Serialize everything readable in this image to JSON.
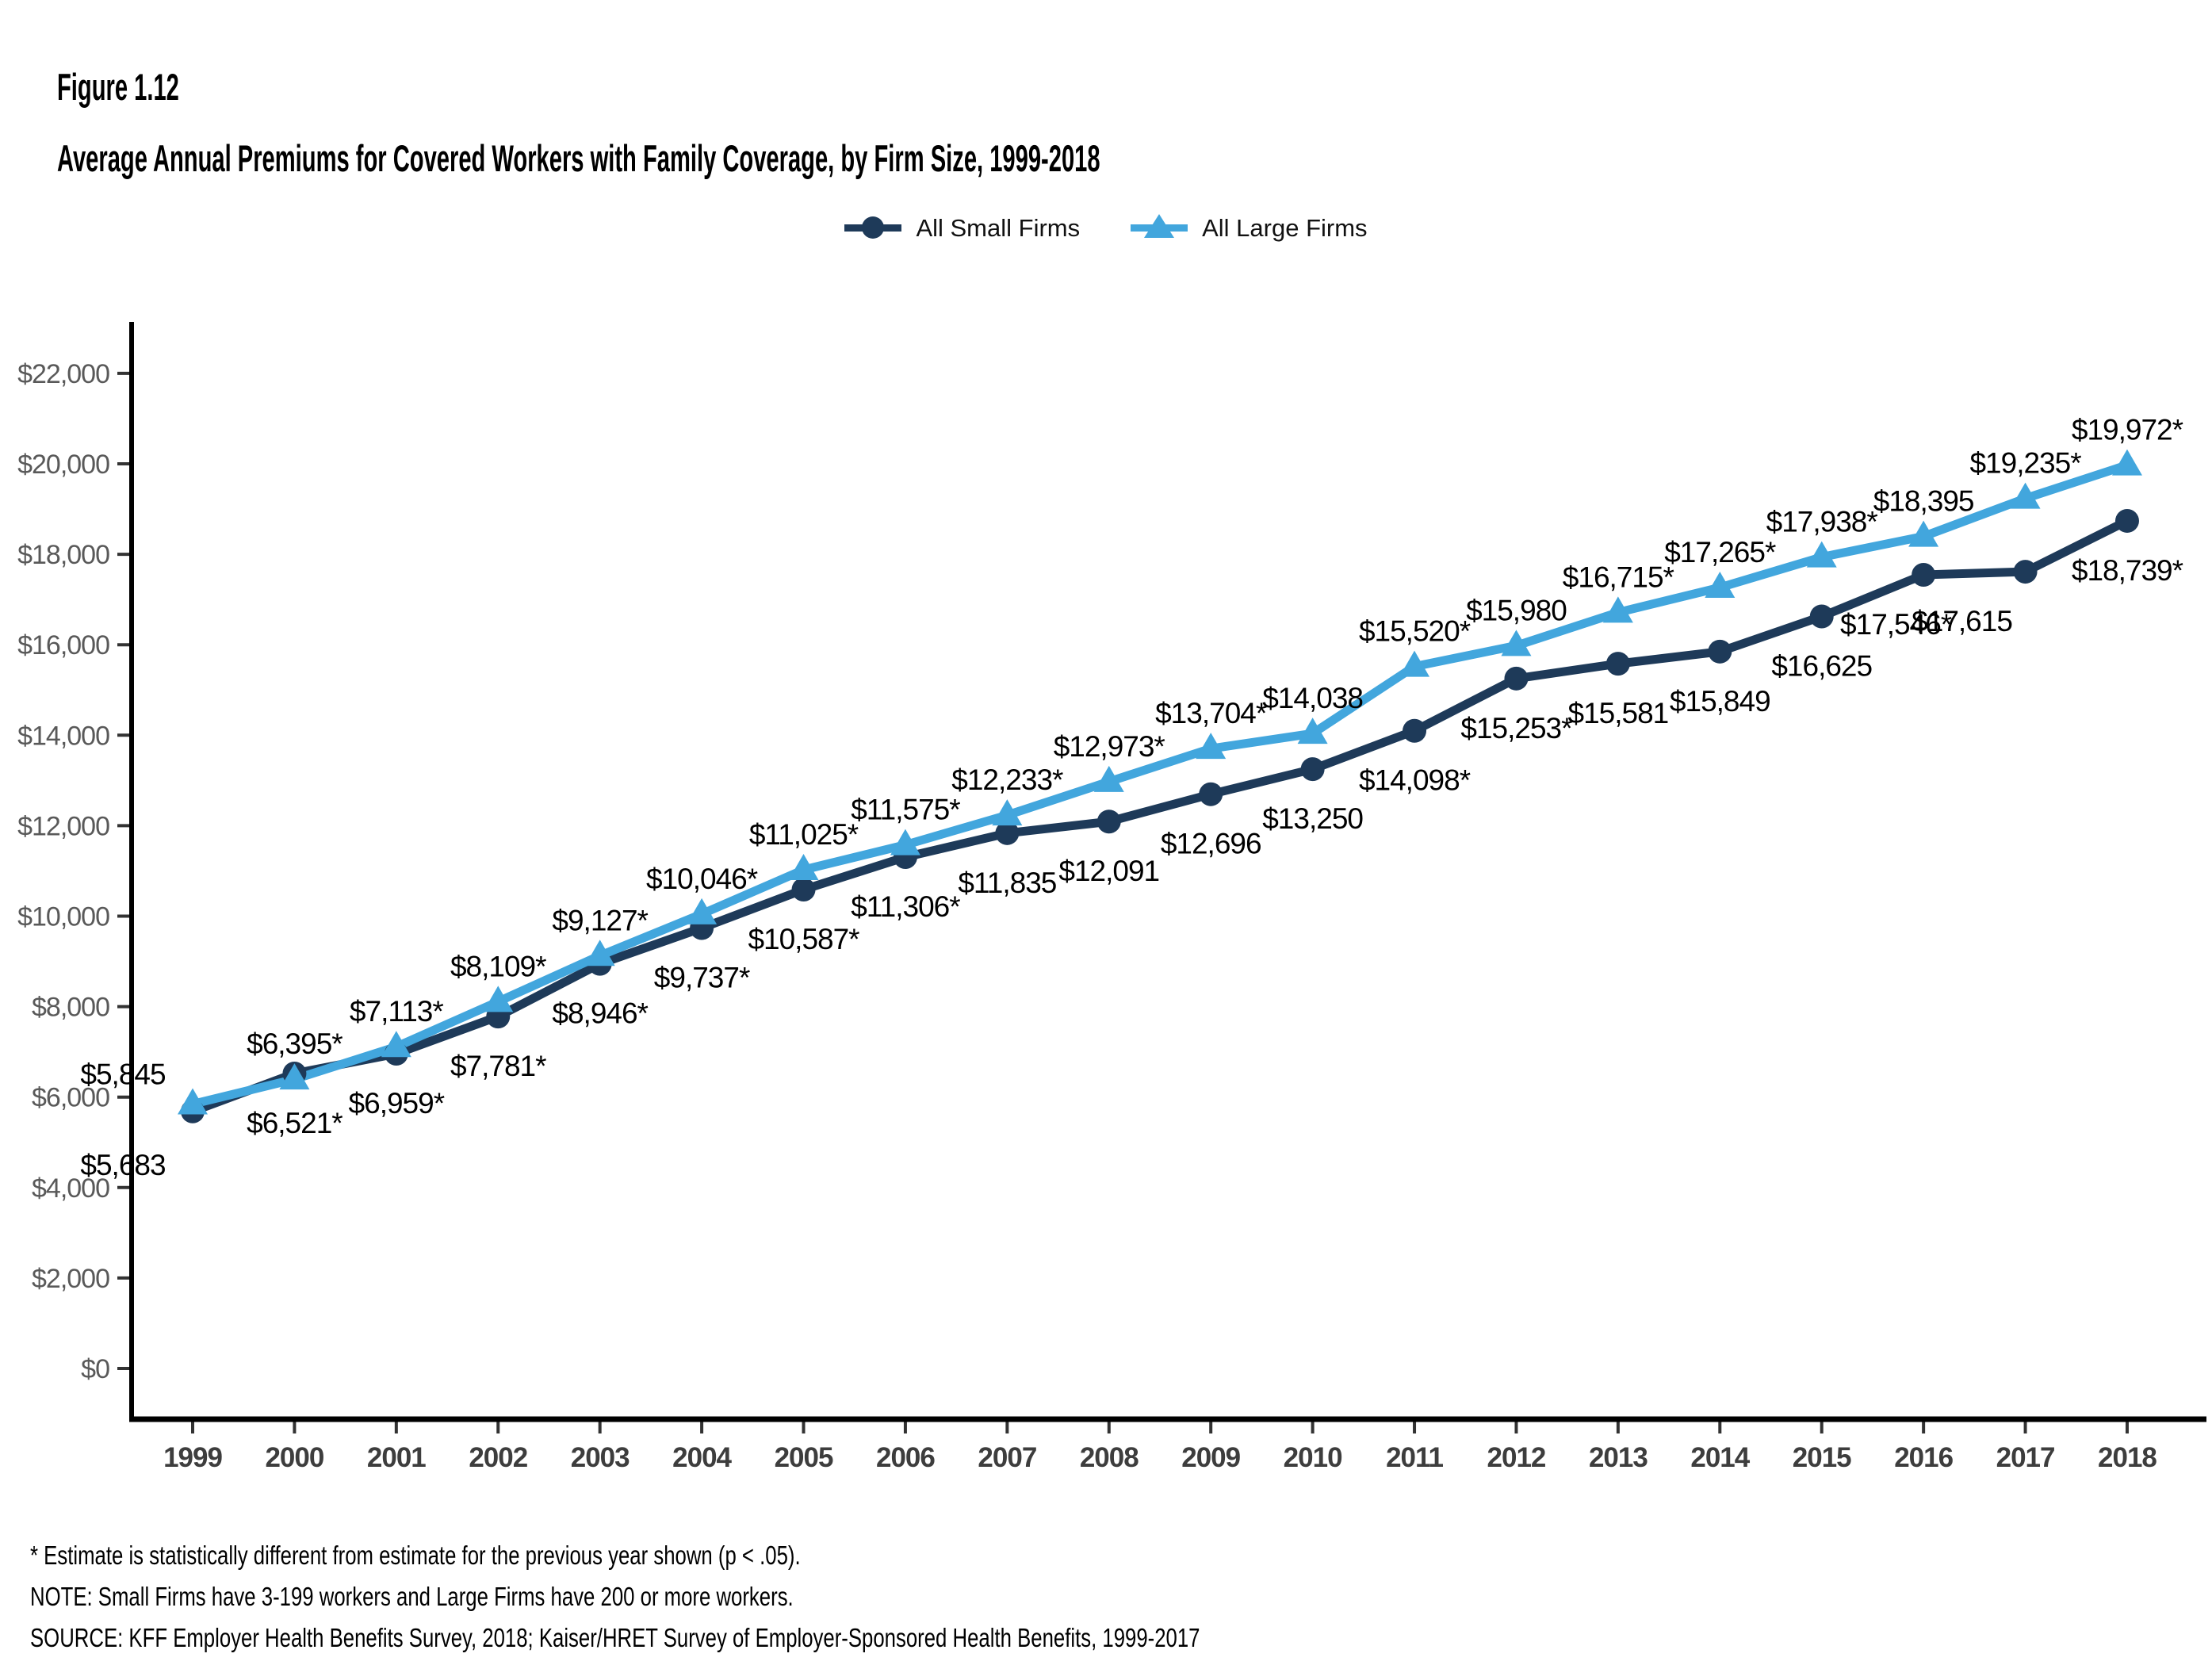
{
  "figure": {
    "label": "Figure 1.12",
    "title": "Average Annual Premiums for Covered Workers with Family Coverage, by Firm Size, 1999-2018"
  },
  "legend": {
    "items": [
      {
        "label": "All Small Firms",
        "marker": "circle",
        "color": "#1e3a59"
      },
      {
        "label": "All Large Firms",
        "marker": "triangle",
        "color": "#42a6dd"
      }
    ]
  },
  "chart_data": {
    "type": "line",
    "x": [
      1999,
      2000,
      2001,
      2002,
      2003,
      2004,
      2005,
      2006,
      2007,
      2008,
      2009,
      2010,
      2011,
      2012,
      2013,
      2014,
      2015,
      2016,
      2017,
      2018
    ],
    "series": [
      {
        "name": "All Small Firms",
        "marker": "circle",
        "color": "#1e3a59",
        "values": [
          5683,
          6521,
          6959,
          7781,
          8946,
          9737,
          10587,
          11306,
          11835,
          12091,
          12696,
          13250,
          14098,
          15253,
          15581,
          15849,
          16625,
          17546,
          17615,
          18739
        ],
        "labels": [
          "$5,683",
          "$6,521*",
          "$6,959*",
          "$7,781*",
          "$8,946*",
          "$9,737*",
          "$10,587*",
          "$11,306*",
          "$11,835",
          "$12,091",
          "$12,696",
          "$13,250",
          "$14,098*",
          "$15,253*",
          "$15,581",
          "$15,849",
          "$16,625",
          "$17,546*",
          "$17,615",
          "$18,739*"
        ]
      },
      {
        "name": "All Large Firms",
        "marker": "triangle",
        "color": "#42a6dd",
        "values": [
          5845,
          6395,
          7113,
          8109,
          9127,
          10046,
          11025,
          11575,
          12233,
          12973,
          13704,
          14038,
          15520,
          15980,
          16715,
          17265,
          17938,
          18395,
          19235,
          19972
        ],
        "labels": [
          "$5,845",
          "$6,395*",
          "$7,113*",
          "$8,109*",
          "$9,127*",
          "$10,046*",
          "$11,025*",
          "$11,575*",
          "$12,233*",
          "$12,973*",
          "$13,704*",
          "$14,038",
          "$15,520*",
          "$15,980",
          "$16,715*",
          "$17,265*",
          "$17,938*",
          "$18,395",
          "$19,235*",
          "$19,972*"
        ]
      }
    ],
    "ylim": [
      0,
      22000
    ],
    "ytick_step": 2000,
    "ytick_prefix": "$",
    "grid": false,
    "legend_position": "top-center",
    "axis_colors": {
      "y_tick_label": "#595959",
      "x_tick_label": "#3d3d3d",
      "axis_line": "#000000",
      "tick_mark": "#333333"
    },
    "data_label_color": "#000000"
  },
  "footnotes": [
    "* Estimate is statistically different from estimate for the previous year shown (p < .05).",
    "NOTE: Small Firms have 3-199 workers and Large Firms have 200 or more workers.",
    "SOURCE: KFF Employer Health Benefits Survey, 2018; Kaiser/HRET Survey of Employer-Sponsored Health Benefits, 1999-2017"
  ]
}
